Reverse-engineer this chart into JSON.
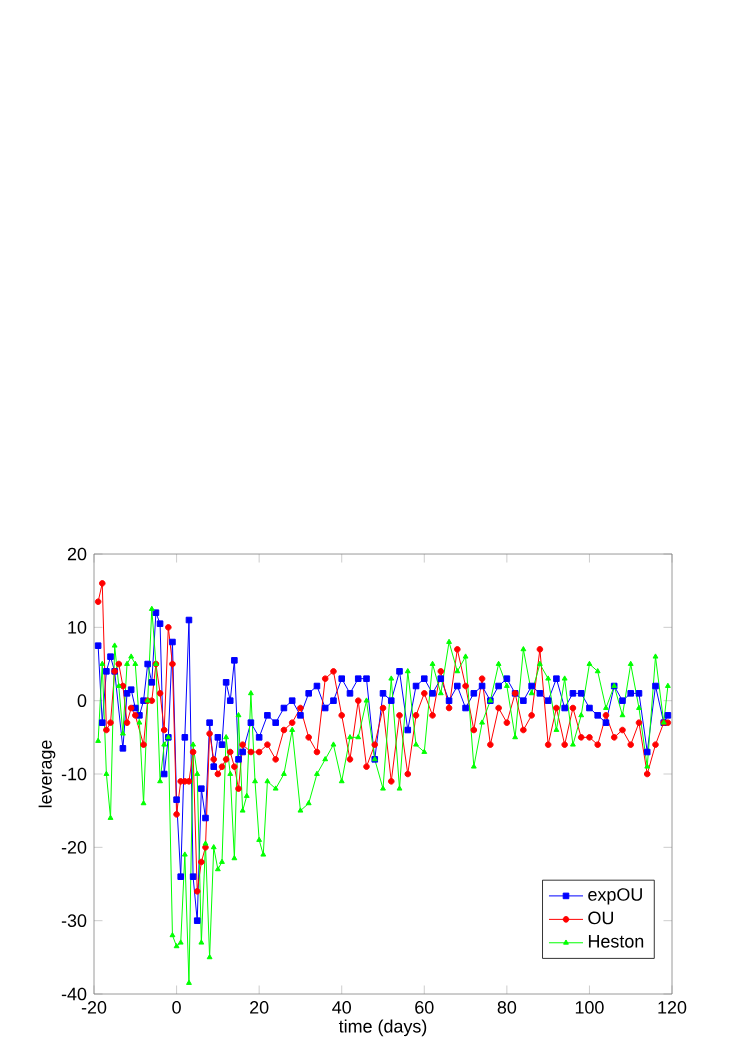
{
  "chart_data": {
    "type": "line",
    "xlabel": "time (days)",
    "ylabel": "leverage",
    "xlim": [
      -20,
      120
    ],
    "ylim": [
      -40,
      20
    ],
    "xticks": [
      -20,
      0,
      20,
      40,
      60,
      80,
      100,
      120
    ],
    "yticks": [
      -40,
      -30,
      -20,
      -10,
      0,
      10,
      20
    ],
    "grid": false,
    "legend": "bottom right",
    "line_style": "solid",
    "series": [
      {
        "name": "expOU",
        "color": "#0000ff",
        "marker": "square",
        "x": [
          -19,
          -18,
          -17,
          -16,
          -15,
          -13,
          -12,
          -11,
          -10,
          -9,
          -8,
          -7,
          -6,
          -5,
          -4,
          -3,
          -2,
          -1,
          0,
          1,
          2,
          3,
          4,
          5,
          6,
          7,
          8,
          9,
          10,
          11,
          12,
          13,
          14,
          15,
          16,
          18,
          20,
          22,
          24,
          26,
          28,
          30,
          32,
          34,
          36,
          38,
          40,
          42,
          44,
          46,
          48,
          50,
          52,
          54,
          56,
          58,
          60,
          62,
          64,
          66,
          68,
          70,
          72,
          74,
          76,
          78,
          80,
          82,
          84,
          86,
          88,
          90,
          92,
          94,
          96,
          98,
          100,
          102,
          104,
          106,
          108,
          110,
          112,
          114,
          116,
          118,
          119
        ],
        "values": [
          7.5,
          -3,
          4,
          6,
          4,
          -6.5,
          1,
          1.5,
          -1,
          -2,
          0,
          5,
          2.5,
          12,
          10.5,
          -10,
          -5,
          8,
          -13.5,
          -24,
          -5,
          11,
          -24,
          -30,
          -12,
          -16,
          -3,
          -9,
          -5,
          -6,
          2.5,
          0,
          5.5,
          -8,
          -7,
          -3,
          -5,
          -2,
          -3,
          -1,
          0,
          -2,
          1,
          2,
          -1,
          0,
          3,
          1,
          3,
          3,
          -8,
          1,
          0,
          4,
          -4,
          2,
          3,
          1,
          3,
          0,
          2,
          -1,
          1,
          2,
          0,
          2,
          3,
          1,
          0,
          2,
          1,
          0,
          3,
          -1,
          1,
          1,
          -1,
          -2,
          -3,
          2,
          0,
          1,
          1,
          -7,
          2,
          -3,
          -2
        ]
      },
      {
        "name": "OU",
        "color": "#ff0000",
        "marker": "circle",
        "x": [
          -19,
          -18,
          -17,
          -16,
          -15,
          -14,
          -13,
          -12,
          -11,
          -10,
          -8,
          -7,
          -6,
          -5,
          -4,
          -3,
          -2,
          -1,
          0,
          1,
          2,
          3,
          4,
          5,
          6,
          7,
          8,
          9,
          10,
          11,
          12,
          13,
          14,
          15,
          16,
          18,
          20,
          22,
          24,
          26,
          28,
          30,
          32,
          34,
          36,
          38,
          40,
          42,
          44,
          46,
          48,
          50,
          52,
          54,
          56,
          58,
          60,
          62,
          64,
          66,
          68,
          70,
          72,
          74,
          76,
          78,
          80,
          82,
          84,
          86,
          88,
          90,
          92,
          94,
          96,
          98,
          100,
          102,
          104,
          106,
          108,
          110,
          112,
          114,
          116,
          118,
          119
        ],
        "values": [
          13.5,
          16,
          -4,
          -3,
          4,
          5,
          2,
          -3,
          -1,
          -2,
          -6,
          0,
          0,
          5,
          1,
          -4,
          10,
          5,
          -15.5,
          -11,
          -11,
          -11,
          -7,
          -26,
          -22,
          -20,
          -4.5,
          -8,
          -10,
          -9,
          -8,
          -7,
          -9,
          -12,
          -6,
          -7,
          -7,
          -6,
          -8,
          -4,
          -3,
          -1,
          -5,
          -7,
          3,
          4,
          -2,
          -8,
          0,
          -9,
          -6,
          -1,
          -11,
          -2,
          -10,
          -2,
          1,
          -2,
          4,
          -1,
          7,
          2,
          -4,
          3,
          -6,
          -1,
          -3,
          1,
          -4,
          -2,
          7,
          -6,
          -1,
          -6,
          -1,
          -5,
          -5,
          -6,
          -2,
          -5,
          -4,
          -6,
          -3,
          -10,
          -6,
          -3,
          -3
        ]
      },
      {
        "name": "Heston",
        "color": "#00ff00",
        "marker": "triangle",
        "x": [
          -19,
          -18,
          -17,
          -16,
          -15,
          -14,
          -13,
          -12,
          -11,
          -10,
          -9,
          -8,
          -7,
          -6,
          -5,
          -4,
          -3,
          -2,
          -1,
          0,
          1,
          2,
          3,
          4,
          5,
          6,
          7,
          8,
          9,
          10,
          11,
          12,
          13,
          14,
          15,
          16,
          17,
          18,
          19,
          20,
          21,
          22,
          24,
          26,
          28,
          30,
          32,
          34,
          36,
          38,
          40,
          42,
          44,
          46,
          48,
          50,
          52,
          54,
          56,
          58,
          60,
          62,
          64,
          66,
          68,
          70,
          72,
          74,
          76,
          78,
          80,
          82,
          84,
          86,
          88,
          90,
          92,
          94,
          96,
          98,
          100,
          102,
          104,
          106,
          108,
          110,
          112,
          114,
          116,
          118,
          119
        ],
        "values": [
          -5.5,
          5,
          -10,
          -16,
          7.5,
          2,
          -4.5,
          5,
          6,
          5,
          -3,
          -14,
          0,
          12.5,
          5,
          -11,
          -6,
          -5,
          -32,
          -33.5,
          -33,
          -21,
          -38.5,
          -6,
          -10,
          -33,
          -19.5,
          -35,
          -20,
          -23,
          -22,
          -5,
          -10,
          -21.5,
          -2,
          -15,
          -13,
          1,
          -11,
          -19,
          -21,
          -11,
          -12,
          -10,
          -4,
          -15,
          -14,
          -10,
          -8,
          -6,
          -11,
          -5,
          -5,
          0,
          -8,
          -12,
          3,
          -12,
          4,
          -6,
          -7,
          5,
          1,
          8,
          4,
          6,
          -9,
          -3,
          0,
          5,
          2,
          -5,
          7,
          1,
          5,
          3,
          -4,
          3,
          -6,
          -2,
          5,
          4,
          -1,
          2,
          -2,
          5,
          -1,
          -9,
          6,
          -3,
          2
        ]
      }
    ]
  }
}
